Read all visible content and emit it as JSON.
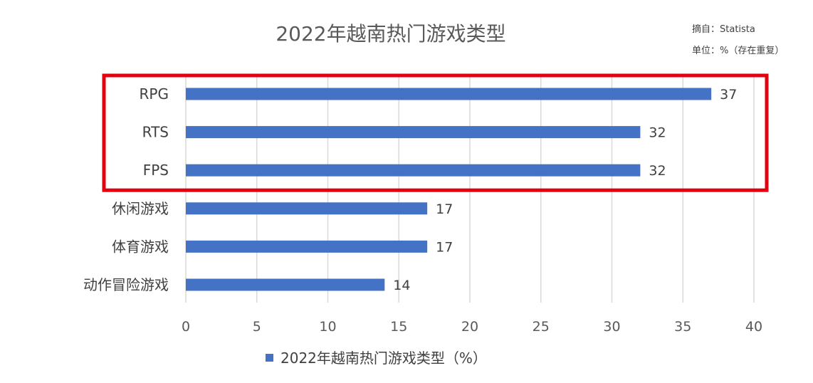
{
  "chart_data": {
    "type": "bar",
    "orientation": "horizontal",
    "title": "2022年越南热门游戏类型",
    "source_note": "摘自：Statista",
    "unit_note": "单位：%（存在重复）",
    "categories": [
      "RPG",
      "RTS",
      "FPS",
      "休闲游戏",
      "体育游戏",
      "动作冒险游戏"
    ],
    "series": [
      {
        "name": "2022年越南热门游戏类型（%）",
        "values": [
          37,
          32,
          32,
          17,
          17,
          14
        ]
      }
    ],
    "xlim": [
      0,
      40
    ],
    "xticks": [
      0,
      5,
      10,
      15,
      20,
      25,
      30,
      35,
      40
    ],
    "grid": true,
    "legend_position": "bottom",
    "colors": {
      "bar": "#4472c4",
      "highlight_box": "#e3000f",
      "grid": "#d9d9d9"
    },
    "highlight": {
      "categories": [
        "RPG",
        "RTS",
        "FPS"
      ]
    }
  }
}
